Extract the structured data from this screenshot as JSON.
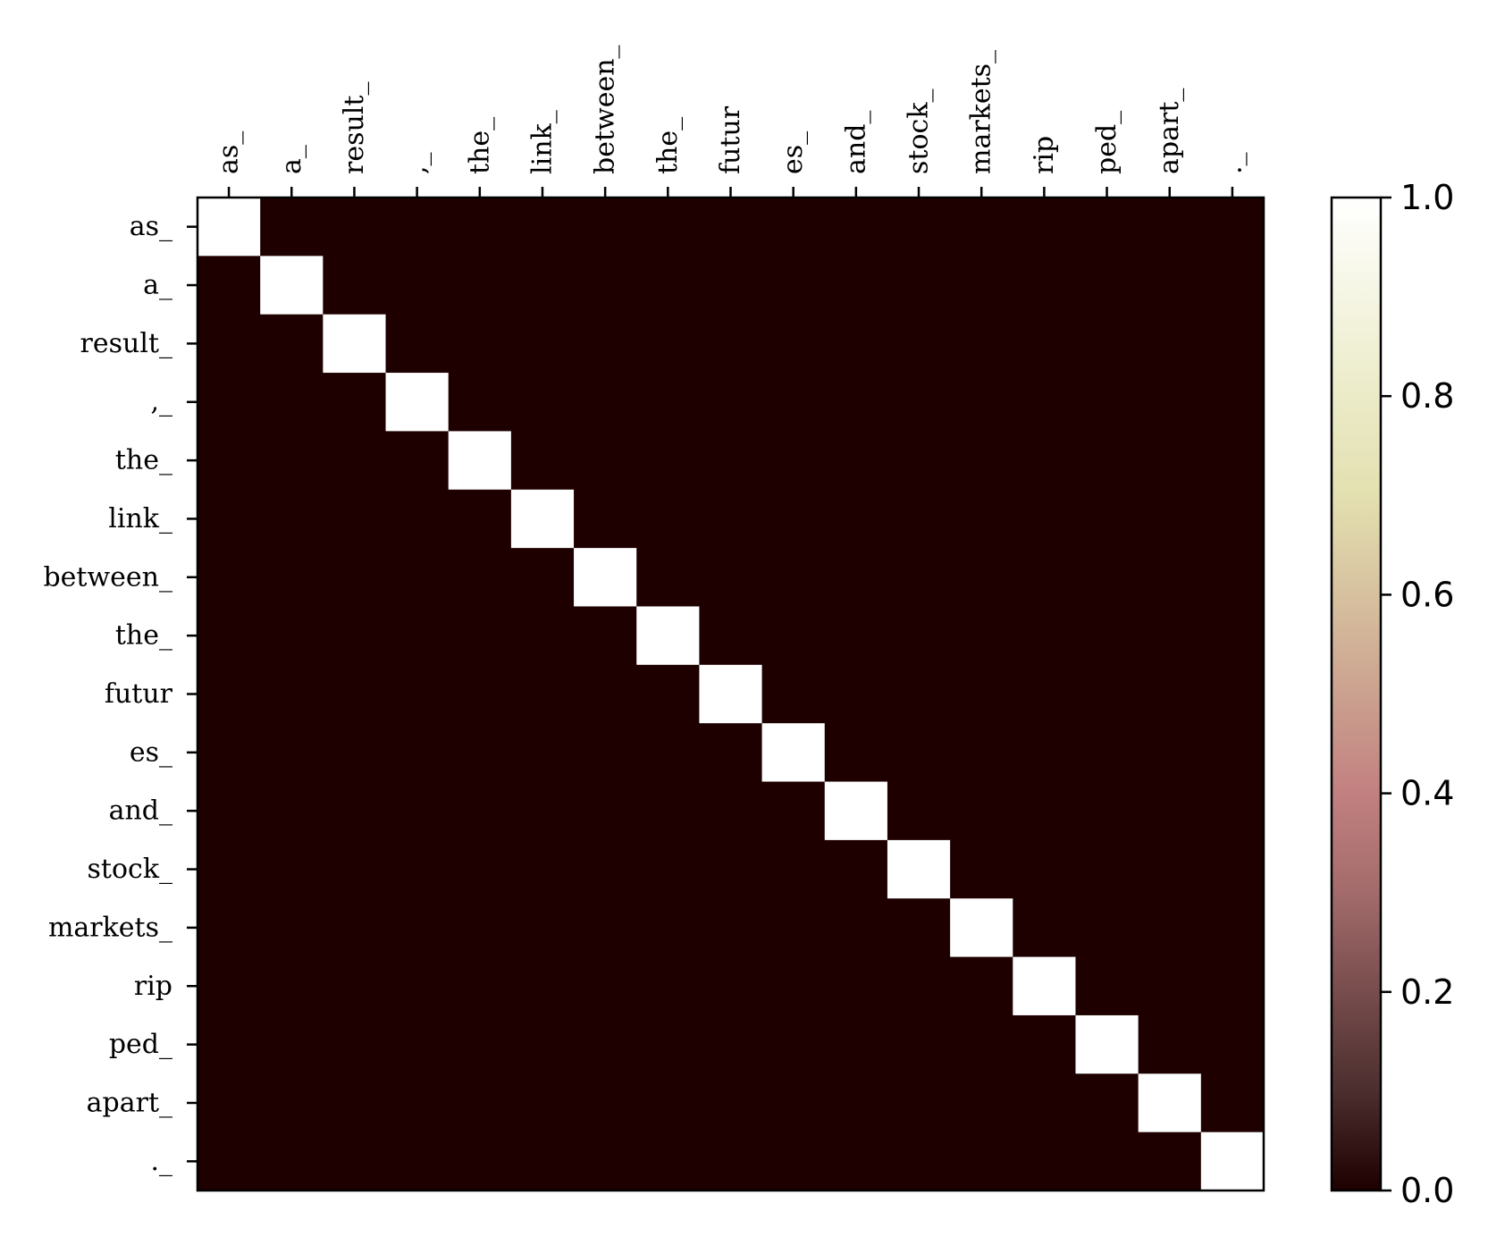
{
  "chart_data": {
    "type": "heatmap",
    "x_labels": [
      "as_",
      "a_",
      "result_",
      ",_",
      "the_",
      "link_",
      "between_",
      "the_",
      "futur",
      "es_",
      "and_",
      "stock_",
      "markets_",
      "rip",
      "ped_",
      "apart_",
      "._"
    ],
    "y_labels": [
      "as_",
      "a_",
      "result_",
      ",_",
      "the_",
      "link_",
      "between_",
      "the_",
      "futur",
      "es_",
      "and_",
      "stock_",
      "markets_",
      "rip",
      "ped_",
      "apart_",
      "._"
    ],
    "values": [
      [
        1,
        0,
        0,
        0,
        0,
        0,
        0,
        0,
        0,
        0,
        0,
        0,
        0,
        0,
        0,
        0,
        0
      ],
      [
        0,
        1,
        0,
        0,
        0,
        0,
        0,
        0,
        0,
        0,
        0,
        0,
        0,
        0,
        0,
        0,
        0
      ],
      [
        0,
        0,
        1,
        0,
        0,
        0,
        0,
        0,
        0,
        0,
        0,
        0,
        0,
        0,
        0,
        0,
        0
      ],
      [
        0,
        0,
        0,
        1,
        0,
        0,
        0,
        0,
        0,
        0,
        0,
        0,
        0,
        0,
        0,
        0,
        0
      ],
      [
        0,
        0,
        0,
        0,
        1,
        0,
        0,
        0,
        0,
        0,
        0,
        0,
        0,
        0,
        0,
        0,
        0
      ],
      [
        0,
        0,
        0,
        0,
        0,
        1,
        0,
        0,
        0,
        0,
        0,
        0,
        0,
        0,
        0,
        0,
        0
      ],
      [
        0,
        0,
        0,
        0,
        0,
        0,
        1,
        0,
        0,
        0,
        0,
        0,
        0,
        0,
        0,
        0,
        0
      ],
      [
        0,
        0,
        0,
        0,
        0,
        0,
        0,
        1,
        0,
        0,
        0,
        0,
        0,
        0,
        0,
        0,
        0
      ],
      [
        0,
        0,
        0,
        0,
        0,
        0,
        0,
        0,
        1,
        0,
        0,
        0,
        0,
        0,
        0,
        0,
        0
      ],
      [
        0,
        0,
        0,
        0,
        0,
        0,
        0,
        0,
        0,
        1,
        0,
        0,
        0,
        0,
        0,
        0,
        0
      ],
      [
        0,
        0,
        0,
        0,
        0,
        0,
        0,
        0,
        0,
        0,
        1,
        0,
        0,
        0,
        0,
        0,
        0
      ],
      [
        0,
        0,
        0,
        0,
        0,
        0,
        0,
        0,
        0,
        0,
        0,
        1,
        0,
        0,
        0,
        0,
        0
      ],
      [
        0,
        0,
        0,
        0,
        0,
        0,
        0,
        0,
        0,
        0,
        0,
        0,
        1,
        0,
        0,
        0,
        0
      ],
      [
        0,
        0,
        0,
        0,
        0,
        0,
        0,
        0,
        0,
        0,
        0,
        0,
        0,
        1,
        0,
        0,
        0
      ],
      [
        0,
        0,
        0,
        0,
        0,
        0,
        0,
        0,
        0,
        0,
        0,
        0,
        0,
        0,
        1,
        0,
        0
      ],
      [
        0,
        0,
        0,
        0,
        0,
        0,
        0,
        0,
        0,
        0,
        0,
        0,
        0,
        0,
        0,
        1,
        0
      ],
      [
        0,
        0,
        0,
        0,
        0,
        0,
        0,
        0,
        0,
        0,
        0,
        0,
        0,
        0,
        0,
        0,
        1
      ]
    ],
    "colorbar": {
      "range": [
        0.0,
        1.0
      ],
      "ticks": [
        0.0,
        0.2,
        0.4,
        0.6,
        0.8,
        1.0
      ],
      "tick_labels": [
        "0.0",
        "0.2",
        "0.4",
        "0.6",
        "0.8",
        "1.0"
      ],
      "colormap": "pink",
      "low_color": "#1e0000",
      "high_color": "#ffffff"
    },
    "x_axis_position": "top",
    "grid": false
  }
}
